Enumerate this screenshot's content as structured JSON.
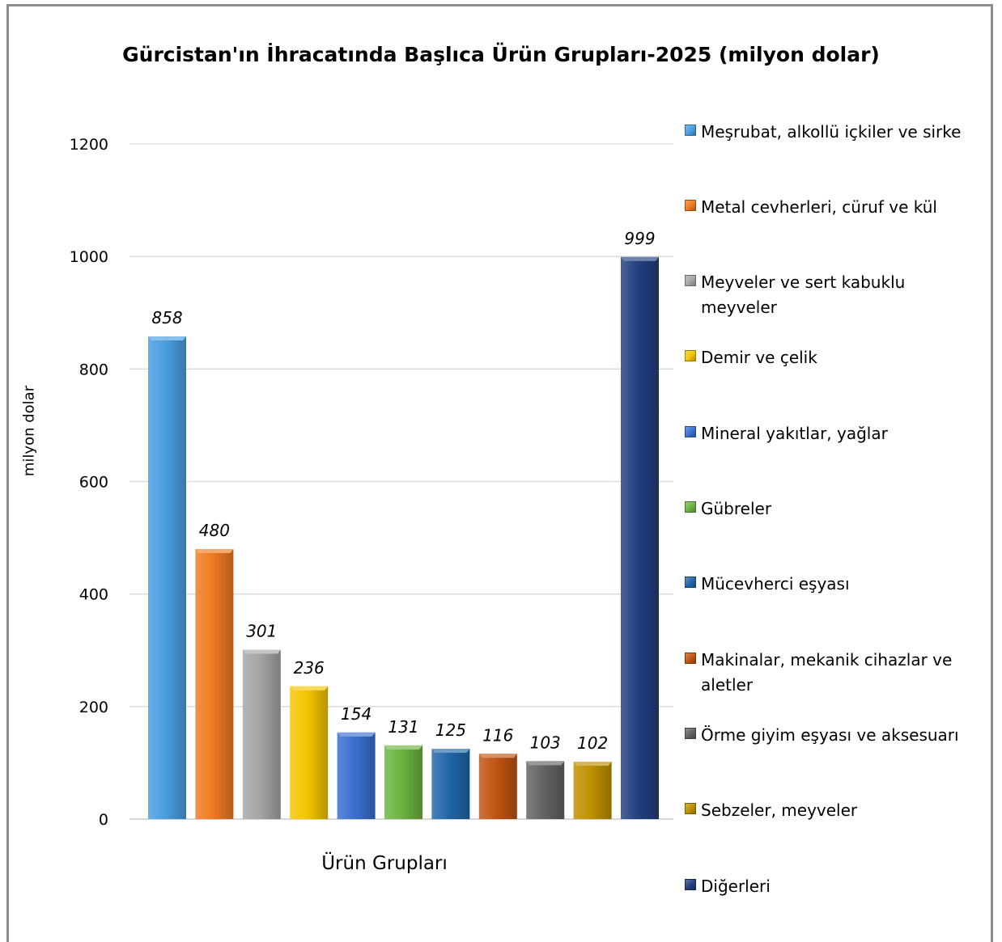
{
  "chart_data": {
    "type": "bar",
    "title": "Gürcistan'ın İhracatında Başlıca Ürün Grupları-2025 (milyon dolar)",
    "xlabel": "Ürün Grupları",
    "ylabel": "milyon dolar",
    "ylim": [
      0,
      1200
    ],
    "yticks": [
      0,
      200,
      400,
      600,
      800,
      1000,
      1200
    ],
    "grid": true,
    "legend_position": "right",
    "series": [
      {
        "name": "Meşrubat, alkollü içkiler ve sirke",
        "value": 858,
        "label": "858",
        "color": "#4a9ee0"
      },
      {
        "name": "Metal cevherleri, cüruf ve kül",
        "value": 480,
        "label": "480",
        "color": "#f07a22"
      },
      {
        "name": "Meyveler ve sert kabuklu meyveler",
        "value": 301,
        "label": "301",
        "color": "#a5a5a5"
      },
      {
        "name": "Demir ve çelik",
        "value": 236,
        "label": "236",
        "color": "#f5c400"
      },
      {
        "name": "Mineral yakıtlar, yağlar",
        "value": 154,
        "label": "154",
        "color": "#3a6fd0"
      },
      {
        "name": "Gübreler",
        "value": 131,
        "label": "131",
        "color": "#6cb43f"
      },
      {
        "name": "Mücevherci eşyası",
        "value": 125,
        "label": "125",
        "color": "#2066a8"
      },
      {
        "name": "Makinalar, mekanik cihazlar ve aletler",
        "value": 116,
        "label": "116",
        "color": "#c05412"
      },
      {
        "name": "Örme giyim eşyası ve aksesuarı",
        "value": 103,
        "label": "103",
        "color": "#636363"
      },
      {
        "name": "Sebzeler, meyveler",
        "value": 102,
        "label": "102",
        "color": "#bf9000"
      },
      {
        "name": "Diğerleri",
        "value": 999,
        "label": "999",
        "color": "#223f80"
      }
    ]
  }
}
